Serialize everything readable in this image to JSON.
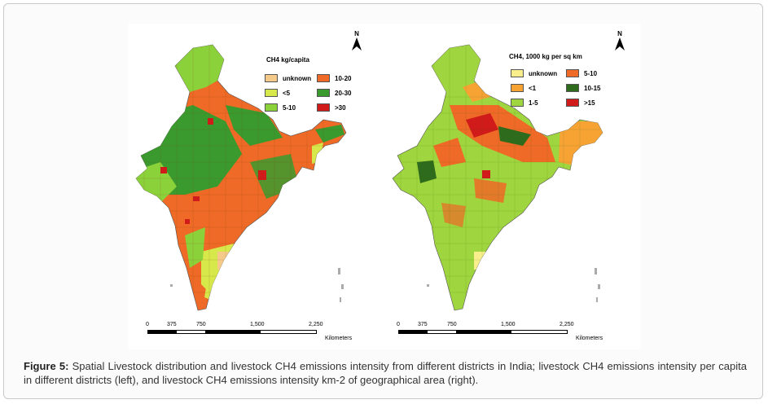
{
  "caption": {
    "label": "Figure 5:",
    "text": "Spatial Livestock distribution and livestock CH4 emissions intensity from different districts in India; livestock CH4 emissions intensity per capita in different districts (left), and livestock CH4 emissions intensity km-2 of geographical area (right)."
  },
  "maps": [
    {
      "title": "CH4  kg/capita",
      "north_label": "N",
      "legend": [
        {
          "label": "unknown",
          "color": "#f5c98a"
        },
        {
          "label": "<5",
          "color": "#d6e84a"
        },
        {
          "label": "5-10",
          "color": "#8bd13a"
        },
        {
          "label": "10-20",
          "color": "#ee6a26"
        },
        {
          "label": "20-30",
          "color": "#3a9a2e"
        },
        {
          "label": ">30",
          "color": "#d11a1a"
        }
      ],
      "scale": {
        "ticks": [
          "0",
          "375",
          "750",
          "1,500",
          "2,250"
        ],
        "unit": "Kilometers"
      }
    },
    {
      "title": "CH4, 1000 kg per sq km",
      "north_label": "N",
      "legend": [
        {
          "label": "unknown",
          "color": "#f8ef8c"
        },
        {
          "label": "<1",
          "color": "#f6a334"
        },
        {
          "label": "1-5",
          "color": "#9fd53e"
        },
        {
          "label": "5-10",
          "color": "#ee6a26"
        },
        {
          "label": "10-15",
          "color": "#2f6b1c"
        },
        {
          "label": ">15",
          "color": "#d11a1a"
        }
      ],
      "scale": {
        "ticks": [
          "0",
          "375",
          "750",
          "1,500",
          "2,250"
        ],
        "unit": "Kilometers"
      }
    }
  ]
}
